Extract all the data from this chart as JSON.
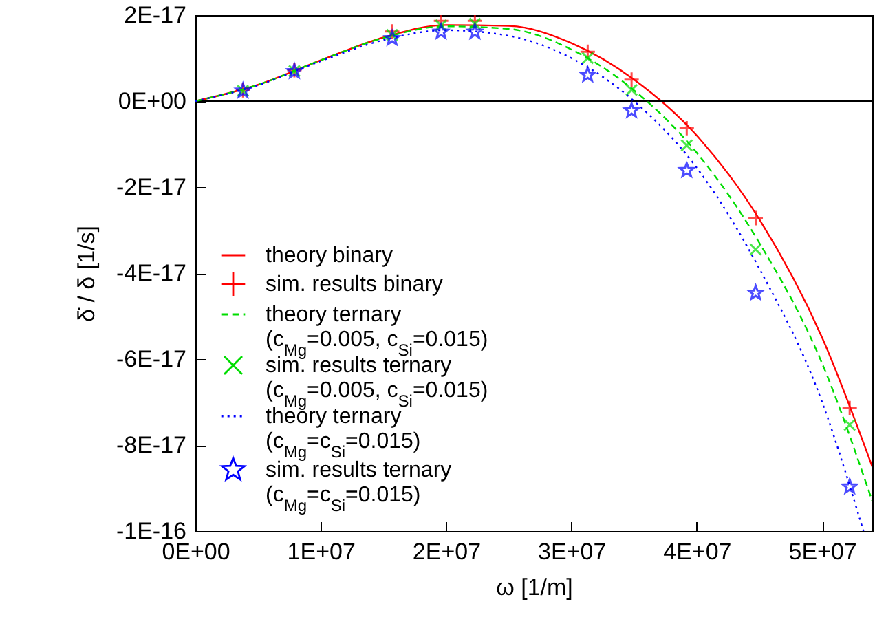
{
  "chart_data": {
    "type": "line",
    "xlabel": "ω [1/m]",
    "ylabel": "δ̇ / δ [1/s]",
    "xlim": [
      0,
      54000000.0
    ],
    "ylim": [
      -1e-16,
      2e-17
    ],
    "xticks": [
      {
        "value": 0,
        "label": "0E+00"
      },
      {
        "value": 10000000.0,
        "label": "1E+07"
      },
      {
        "value": 20000000.0,
        "label": "2E+07"
      },
      {
        "value": 30000000.0,
        "label": "3E+07"
      },
      {
        "value": 40000000.0,
        "label": "4E+07"
      },
      {
        "value": 50000000.0,
        "label": "5E+07"
      }
    ],
    "yticks": [
      {
        "value": 2e-17,
        "label": "2E-17"
      },
      {
        "value": 0,
        "label": "0E+00"
      },
      {
        "value": -2e-17,
        "label": "-2E-17"
      },
      {
        "value": -4e-17,
        "label": "-4E-17"
      },
      {
        "value": -6e-17,
        "label": "-6E-17"
      },
      {
        "value": -8e-17,
        "label": "-8E-17"
      },
      {
        "value": -1e-16,
        "label": "-1E-16"
      }
    ],
    "ref_lines": [
      {
        "axis": "y",
        "value": 0,
        "color": "#000000"
      }
    ],
    "legend": "bottom left",
    "series": [
      {
        "name": "theory binary",
        "type": "line",
        "color": "#ff0000",
        "line_style": "solid",
        "x": [
          0,
          5000000.0,
          10000000.0,
          15000000.0,
          20000000.0,
          25000000.0,
          30000000.0,
          35000000.0,
          40000000.0,
          45000000.0,
          50000000.0,
          54000000.0
        ],
        "values": [
          0,
          3.8e-18,
          9.5e-18,
          1.48e-17,
          1.77e-17,
          1.75e-17,
          1.35e-17,
          5e-18,
          -8e-18,
          -2.75e-17,
          -5.5e-17,
          -8.5e-17
        ]
      },
      {
        "name": "sim. results binary",
        "type": "scatter",
        "color": "#ff0000",
        "marker": "cross",
        "x": [
          3800000.0,
          7900000.0,
          15700000.0,
          19600000.0,
          22300000.0,
          31300000.0,
          34800000.0,
          39200000.0,
          44700000.0,
          52200000.0
        ],
        "values": [
          2.5e-18,
          7.2e-18,
          1.62e-17,
          1.87e-17,
          1.87e-17,
          1.15e-17,
          5e-18,
          -6.3e-18,
          -2.72e-17,
          -7.14e-17
        ]
      },
      {
        "name": "theory ternary (c$_{Mg}$=0.005, c$_{Si}$=0.015)",
        "type": "line",
        "color": "#00dd00",
        "line_style": "dashed",
        "x": [
          0,
          5000000.0,
          10000000.0,
          15000000.0,
          20000000.0,
          25000000.0,
          30000000.0,
          35000000.0,
          40000000.0,
          45000000.0,
          50000000.0,
          54000000.0
        ],
        "values": [
          0,
          3.8e-18,
          9.5e-18,
          1.47e-17,
          1.74e-17,
          1.68e-17,
          1.2e-17,
          2.5e-18,
          -1.2e-17,
          -3.3e-17,
          -6.1e-17,
          -9.3e-17
        ]
      },
      {
        "name": "sim. results ternary (c$_{Mg}$=0.005, c$_{Si}$=0.015)",
        "type": "scatter",
        "color": "#00dd00",
        "marker": "x",
        "x": [
          3800000.0,
          7900000.0,
          15700000.0,
          19600000.0,
          22300000.0,
          31300000.0,
          34800000.0,
          39200000.0,
          44700000.0,
          52200000.0
        ],
        "values": [
          2.4e-18,
          7e-18,
          1.54e-17,
          1.76e-17,
          1.8e-17,
          1e-17,
          2.6e-18,
          -1.03e-17,
          -3.45e-17,
          -7.53e-17
        ]
      },
      {
        "name": "theory ternary (c$_{Mg}$=c$_{Si}$=0.015)",
        "type": "line",
        "color": "#0000ff",
        "line_style": "dotted",
        "x": [
          0,
          5000000.0,
          10000000.0,
          15000000.0,
          20000000.0,
          25000000.0,
          30000000.0,
          35000000.0,
          40000000.0,
          45000000.0,
          50000000.0,
          53300000.0
        ],
        "values": [
          0,
          3.7e-18,
          9.3e-18,
          1.42e-17,
          1.65e-17,
          1.52e-17,
          1e-17,
          0,
          -1.55e-17,
          -3.9e-17,
          -7e-17,
          -1e-16
        ]
      },
      {
        "name": "sim. results ternary (c$_{Mg}$=c$_{Si}$=0.015)",
        "type": "scatter",
        "color": "#0000ff",
        "marker": "star",
        "x": [
          3800000.0,
          7900000.0,
          15700000.0,
          19600000.0,
          22300000.0,
          31300000.0,
          34800000.0,
          39200000.0,
          44700000.0,
          52200000.0
        ],
        "values": [
          2.4e-18,
          6.9e-18,
          1.46e-17,
          1.61e-17,
          1.61e-17,
          6.1e-18,
          -2.2e-18,
          -1.61e-17,
          -4.46e-17,
          -8.97e-17
        ]
      }
    ]
  }
}
